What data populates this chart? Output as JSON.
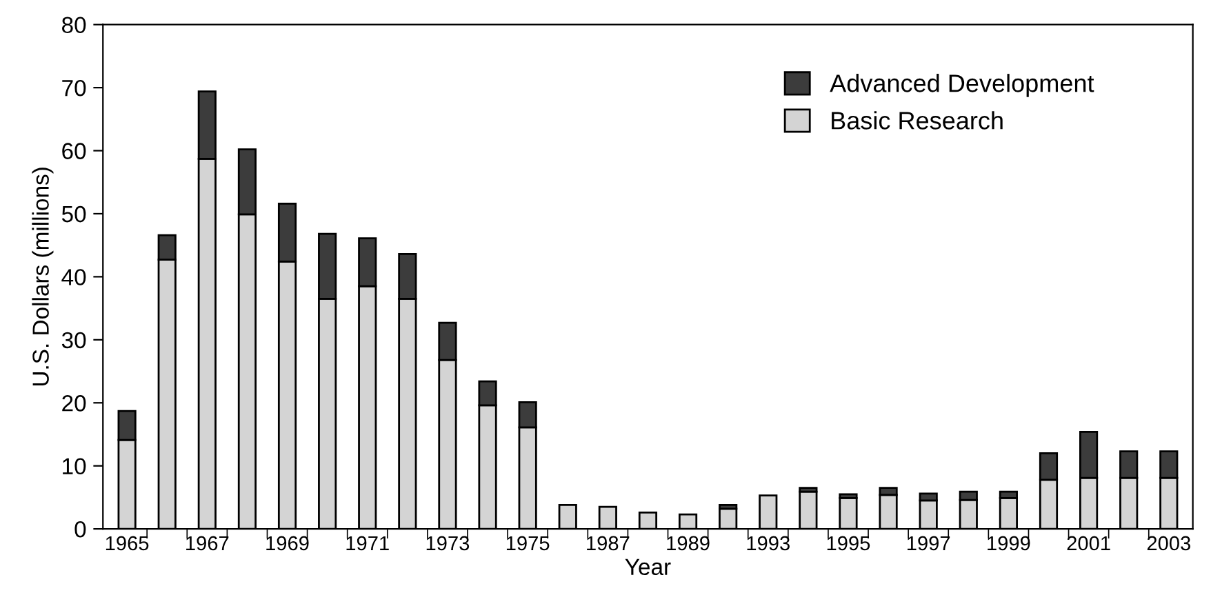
{
  "chart_data": {
    "type": "bar",
    "stacked": true,
    "xlabel": "Year",
    "ylabel": "U.S. Dollars (millions)",
    "categories": [
      "1965",
      null,
      "1967",
      null,
      "1969",
      null,
      "1971",
      null,
      "1973",
      null,
      "1975",
      null,
      "1987",
      null,
      "1989",
      null,
      "1993",
      null,
      "1995",
      null,
      "1997",
      null,
      "1999",
      null,
      "2001",
      null,
      "2003"
    ],
    "series": [
      {
        "name": "Basic Research",
        "color": "#d4d4d4",
        "values": [
          14.1,
          42.7,
          58.7,
          49.9,
          42.4,
          36.5,
          38.5,
          36.5,
          26.8,
          19.6,
          16.1,
          3.8,
          3.5,
          2.6,
          2.3,
          3.2,
          5.3,
          5.9,
          4.9,
          5.4,
          4.5,
          4.6,
          4.9,
          7.8,
          8.1,
          8.1,
          8.1
        ]
      },
      {
        "name": "Advanced Development",
        "color": "#3c3c3c",
        "values": [
          4.6,
          3.9,
          10.7,
          10.3,
          9.2,
          10.3,
          7.6,
          7.1,
          5.9,
          3.8,
          4.0,
          0,
          0,
          0,
          0,
          0.6,
          0,
          0.6,
          0.6,
          1.1,
          1.1,
          1.3,
          1.0,
          4.2,
          7.3,
          4.2,
          4.2
        ]
      }
    ],
    "ylim": [
      0,
      80
    ],
    "yticks": [
      0,
      10,
      20,
      30,
      40,
      50,
      60,
      70,
      80
    ],
    "grid": false,
    "legend": "top right"
  }
}
